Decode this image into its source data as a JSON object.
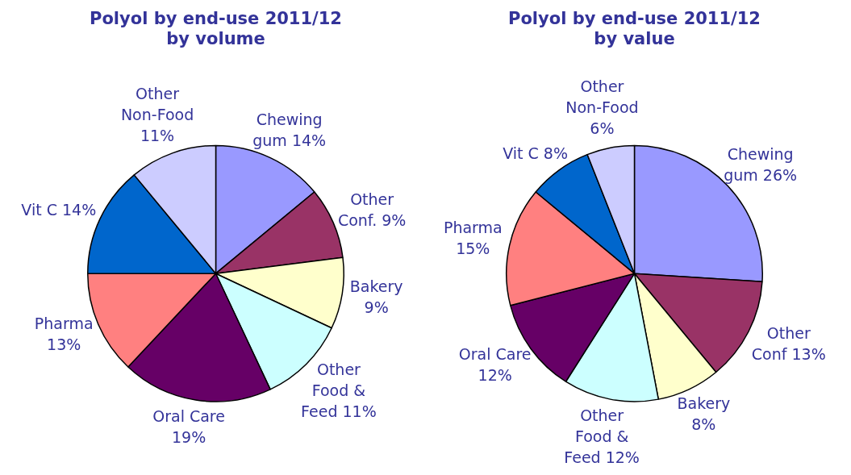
{
  "chart_data": [
    {
      "type": "pie",
      "title": "Polyol by end-use 2011/12",
      "subtitle": "by volume",
      "categories": [
        "Chewing gum",
        "Other Conf.",
        "Bakery",
        "Other Food & Feed",
        "Oral Care",
        "Pharma",
        "Vit C",
        "Other Non-Food"
      ],
      "values": [
        14,
        9,
        9,
        11,
        19,
        13,
        14,
        11
      ],
      "value_labels": [
        "14%",
        "9%",
        "9%",
        "11%",
        "19%",
        "13%",
        "14%",
        "11%"
      ],
      "colors": [
        "#9999ff",
        "#993366",
        "#ffffcc",
        "#ccffff",
        "#660066",
        "#ff8080",
        "#0066cc",
        "#ccccff"
      ],
      "legend": false
    },
    {
      "type": "pie",
      "title": "Polyol by end-use 2011/12",
      "subtitle": "by value",
      "categories": [
        "Chewing gum",
        "Other Conf",
        "Bakery",
        "Other Food & Feed",
        "Oral Care",
        "Pharma",
        "Vit C",
        "Other Non-Food"
      ],
      "values": [
        26,
        13,
        8,
        12,
        12,
        15,
        8,
        6
      ],
      "value_labels": [
        "26%",
        "13%",
        "8%",
        "12%",
        "12%",
        "15%",
        "8%",
        "6%"
      ],
      "colors": [
        "#9999ff",
        "#993366",
        "#ffffcc",
        "#ccffff",
        "#660066",
        "#ff8080",
        "#0066cc",
        "#ccccff"
      ],
      "legend": false
    }
  ]
}
